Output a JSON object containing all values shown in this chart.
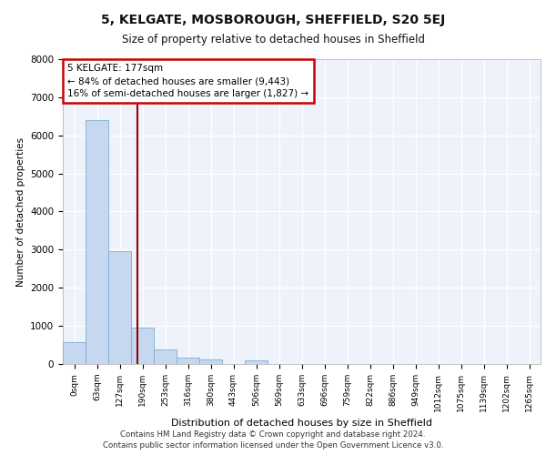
{
  "title1": "5, KELGATE, MOSBOROUGH, SHEFFIELD, S20 5EJ",
  "title2": "Size of property relative to detached houses in Sheffield",
  "xlabel": "Distribution of detached houses by size in Sheffield",
  "ylabel": "Number of detached properties",
  "bar_color": "#c5d8f0",
  "bar_edge_color": "#7aafd4",
  "vline_color": "#990000",
  "vline_x": 2.77,
  "annotation_text": "5 KELGATE: 177sqm\n← 84% of detached houses are smaller (9,443)\n16% of semi-detached houses are larger (1,827) →",
  "annotation_box_color": "#ffffff",
  "annotation_box_edge": "#cc0000",
  "background_color": "#edf2fb",
  "grid_color": "#ffffff",
  "footer_line1": "Contains HM Land Registry data © Crown copyright and database right 2024.",
  "footer_line2": "Contains public sector information licensed under the Open Government Licence v3.0.",
  "categories": [
    "0sqm",
    "63sqm",
    "127sqm",
    "190sqm",
    "253sqm",
    "316sqm",
    "380sqm",
    "443sqm",
    "506sqm",
    "569sqm",
    "633sqm",
    "696sqm",
    "759sqm",
    "822sqm",
    "886sqm",
    "949sqm",
    "1012sqm",
    "1075sqm",
    "1139sqm",
    "1202sqm",
    "1265sqm"
  ],
  "values": [
    580,
    6400,
    2950,
    950,
    380,
    175,
    110,
    0,
    85,
    0,
    0,
    0,
    0,
    0,
    0,
    0,
    0,
    0,
    0,
    0,
    0
  ],
  "ylim": [
    0,
    8000
  ],
  "yticks": [
    0,
    1000,
    2000,
    3000,
    4000,
    5000,
    6000,
    7000,
    8000
  ]
}
